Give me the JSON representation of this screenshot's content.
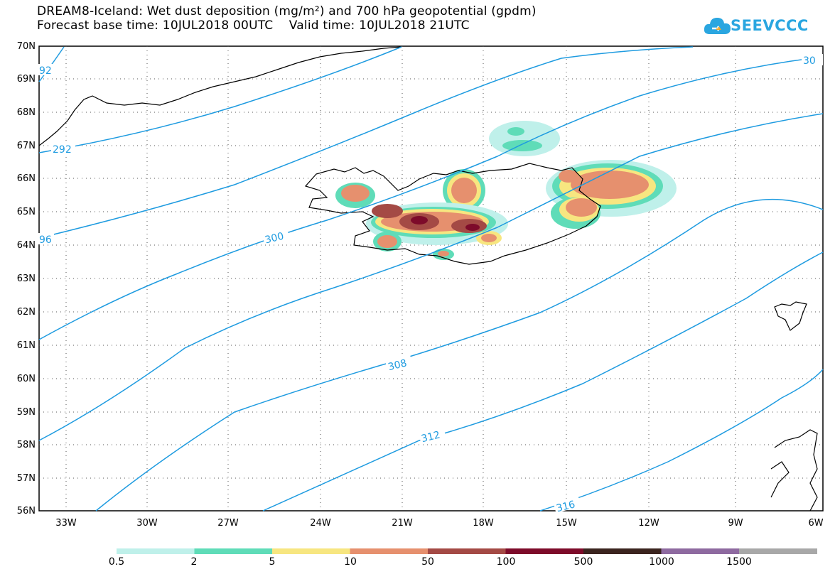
{
  "title_line1": "DREAM8-Iceland: Wet dust deposition (mg/m²) and 700 hPa geopotential (gpdm)",
  "title_line2": "Forecast base time: 10JUL2018 00UTC    Valid time: 10JUL2018 21UTC",
  "logo": {
    "text": "SEEVCCC",
    "icon": "cloud-icon",
    "color": "#2aa6e0"
  },
  "axes": {
    "lat_labels": [
      "70N",
      "69N",
      "68N",
      "67N",
      "66N",
      "65N",
      "64N",
      "63N",
      "62N",
      "61N",
      "60N",
      "59N",
      "58N",
      "57N",
      "56N"
    ],
    "lon_labels": [
      "33W",
      "30W",
      "27W",
      "24W",
      "21W",
      "18W",
      "15W",
      "12W",
      "9W",
      "6W"
    ],
    "lat_range": [
      56,
      70
    ],
    "lon_range": [
      -34.5,
      -6
    ],
    "grid": "dotted"
  },
  "contours": {
    "color": "#1e9be0",
    "labels": [
      "92",
      "292",
      "96",
      "300",
      "308",
      "312",
      "316",
      "30"
    ]
  },
  "colorbar": {
    "colors": [
      "#bff0ea",
      "#5fdcb8",
      "#f7e680",
      "#e6906e",
      "#a44a45",
      "#7d0b2a",
      "#3b241f",
      "#8e6aa0",
      "#a8a8a8"
    ],
    "labels": [
      "0.5",
      "2",
      "5",
      "10",
      "50",
      "100",
      "500",
      "1000",
      "1500"
    ]
  }
}
